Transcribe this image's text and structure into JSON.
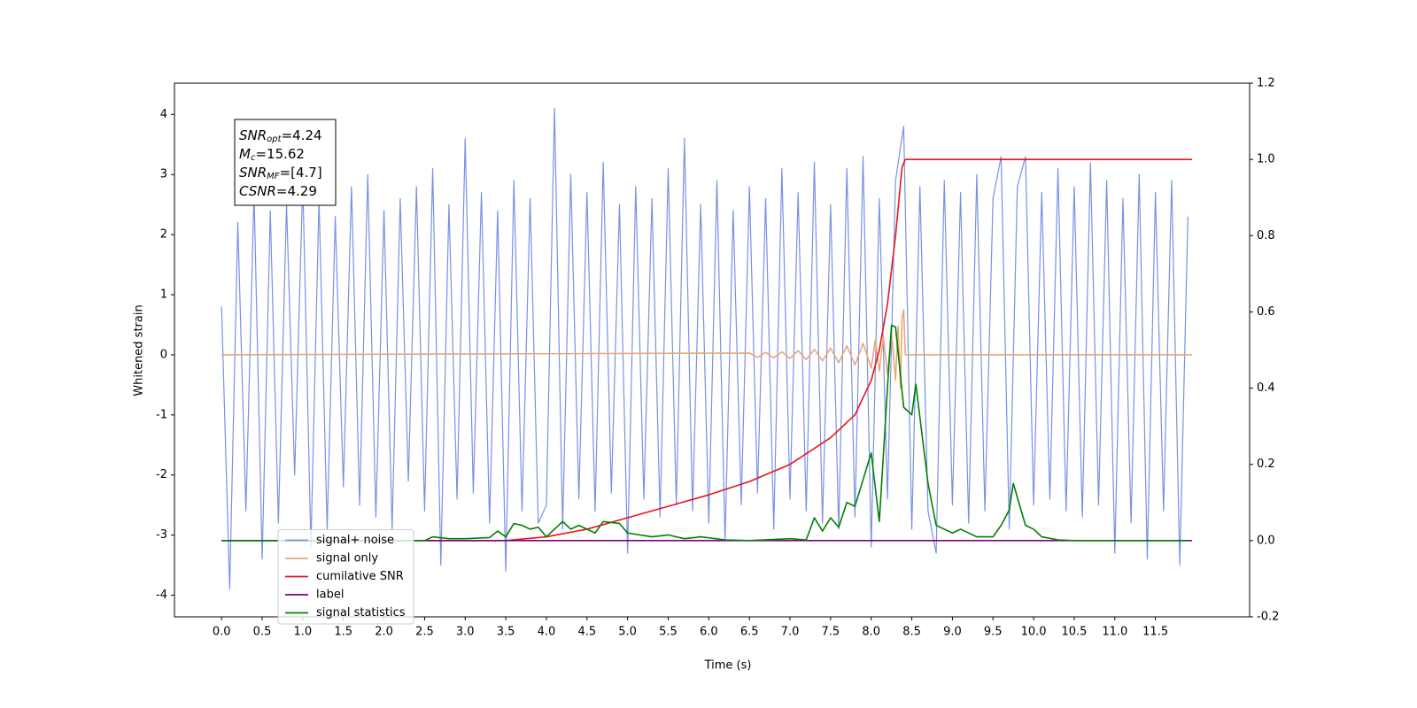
{
  "chart_data": {
    "type": "line",
    "xlabel": "Time (s)",
    "ylabel": "Whitened strain",
    "xlim": [
      -0.58,
      12.66
    ],
    "ylim": [
      -4.36,
      4.52
    ],
    "y2lim": [
      -0.2,
      1.2
    ],
    "xticks": [
      {
        "value": 0,
        "label": "0.0"
      },
      0.5,
      {
        "value": 1,
        "label": "1.0"
      },
      1.5,
      {
        "value": 2,
        "label": "2.0"
      },
      2.5,
      {
        "value": 3,
        "label": "3.0"
      },
      3.5,
      {
        "value": 4,
        "label": "4.0"
      },
      4.5,
      {
        "value": 5,
        "label": "5.0"
      },
      5.5,
      {
        "value": 6,
        "label": "6.0"
      },
      6.5,
      {
        "value": 7,
        "label": "7.0"
      },
      7.5,
      {
        "value": 8,
        "label": "8.0"
      },
      8.5,
      {
        "value": 9,
        "label": "9.0"
      },
      9.5,
      {
        "value": 10,
        "label": "10.0"
      },
      10.5,
      {
        "value": 11,
        "label": "11.0"
      },
      11.5
    ],
    "yticks": [
      -4,
      -3,
      -2,
      -1,
      0,
      1,
      2,
      3,
      4
    ],
    "y2ticks": [
      -0.2,
      {
        "value": 0,
        "label": "0.0"
      },
      0.2,
      0.4,
      0.6,
      0.8,
      {
        "value": 1,
        "label": "1.0"
      },
      1.2
    ],
    "legend": "lower left",
    "annotation": [
      {
        "base": "SNR",
        "sub": "opt",
        "text": "=4.24"
      },
      {
        "base": "M",
        "sub": "c",
        "text": "=15.62"
      },
      {
        "base": "SNR",
        "sub": "MF",
        "text": "=[4.7]"
      },
      {
        "base": "CSNR",
        "text": "=4.29"
      }
    ],
    "series": [
      {
        "name": "signal+ noise",
        "color": "#7891e6",
        "x": [
          0.0,
          0.1,
          0.2,
          0.3,
          0.4,
          0.5,
          0.6,
          0.7,
          0.8,
          0.9,
          1.0,
          1.1,
          1.2,
          1.3,
          1.4,
          1.5,
          1.6,
          1.7,
          1.8,
          1.9,
          2.0,
          2.1,
          2.2,
          2.3,
          2.4,
          2.5,
          2.6,
          2.7,
          2.8,
          2.9,
          3.0,
          3.1,
          3.2,
          3.3,
          3.4,
          3.5,
          3.6,
          3.7,
          3.8,
          3.9,
          4.0,
          4.1,
          4.2,
          4.3,
          4.4,
          4.5,
          4.6,
          4.7,
          4.8,
          4.9,
          5.0,
          5.1,
          5.2,
          5.3,
          5.4,
          5.5,
          5.6,
          5.7,
          5.8,
          5.9,
          6.0,
          6.1,
          6.2,
          6.3,
          6.4,
          6.5,
          6.6,
          6.7,
          6.8,
          6.9,
          7.0,
          7.1,
          7.2,
          7.3,
          7.4,
          7.5,
          7.6,
          7.7,
          7.8,
          7.9,
          8.0,
          8.1,
          8.2,
          8.3,
          8.4,
          8.5,
          8.6,
          8.7,
          8.8,
          8.9,
          9.0,
          9.1,
          9.2,
          9.3,
          9.4,
          9.5,
          9.6,
          9.7,
          9.8,
          9.9,
          10.0,
          10.1,
          10.2,
          10.3,
          10.4,
          10.5,
          10.6,
          10.7,
          10.8,
          10.9,
          11.0,
          11.1,
          11.2,
          11.3,
          11.4,
          11.5,
          11.6,
          11.7,
          11.8,
          11.9
        ],
        "values": [
          0.8,
          -3.9,
          2.2,
          -2.6,
          2.7,
          -3.4,
          2.4,
          -2.8,
          2.5,
          -2.0,
          2.9,
          -3.2,
          2.6,
          -2.9,
          2.3,
          -2.2,
          2.8,
          -2.5,
          3.0,
          -2.7,
          2.4,
          -2.9,
          2.6,
          -2.1,
          2.8,
          -2.6,
          3.1,
          -3.5,
          2.5,
          -2.4,
          3.6,
          -2.3,
          2.7,
          -2.8,
          2.4,
          -3.6,
          2.9,
          -2.6,
          2.6,
          -2.8,
          -2.5,
          4.1,
          -2.9,
          3.0,
          -2.4,
          2.7,
          -2.6,
          3.2,
          -2.3,
          2.5,
          -3.3,
          2.8,
          -2.4,
          2.6,
          -2.7,
          3.1,
          -2.5,
          3.6,
          -2.6,
          2.5,
          -2.8,
          2.9,
          -3.1,
          2.4,
          -2.5,
          2.8,
          -2.3,
          2.6,
          -2.9,
          3.1,
          -2.4,
          2.7,
          -2.6,
          3.2,
          -2.8,
          2.5,
          -2.9,
          3.1,
          -2.7,
          3.3,
          -3.2,
          2.6,
          -2.4,
          2.9,
          3.8,
          -2.9,
          2.8,
          -2.6,
          -3.3,
          2.9,
          -2.5,
          2.7,
          -2.8,
          3.0,
          -2.6,
          2.6,
          3.3,
          -2.9,
          2.8,
          3.3,
          -2.5,
          2.7,
          -2.4,
          3.1,
          -2.6,
          2.8,
          -2.7,
          3.2,
          -2.5,
          2.9,
          -3.3,
          2.6,
          -2.8,
          3.0,
          -3.4,
          2.7,
          -2.6,
          2.9,
          -3.5,
          2.3
        ]
      },
      {
        "name": "signal only",
        "color": "#e8a878",
        "x": [
          0.0,
          6.5,
          6.6,
          6.7,
          6.8,
          6.9,
          7.0,
          7.1,
          7.2,
          7.3,
          7.4,
          7.5,
          7.6,
          7.7,
          7.8,
          7.9,
          8.0,
          8.05,
          8.1,
          8.15,
          8.2,
          8.25,
          8.3,
          8.33,
          8.36,
          8.38,
          8.4,
          8.42,
          11.95
        ],
        "values": [
          0,
          0.03,
          -0.04,
          0.04,
          -0.05,
          0.05,
          -0.06,
          0.07,
          -0.08,
          0.09,
          -0.1,
          0.11,
          -0.13,
          0.15,
          -0.17,
          0.19,
          -0.22,
          0.24,
          -0.27,
          0.3,
          -0.33,
          0.37,
          -0.42,
          0.48,
          -0.55,
          0.62,
          0.75,
          0,
          0
        ]
      },
      {
        "name": "cumilative SNR",
        "color": "#e8141c",
        "axis": "y2",
        "x": [
          0,
          3.5,
          4,
          4.5,
          5,
          5.5,
          6,
          6.5,
          7,
          7.5,
          7.8,
          8.0,
          8.1,
          8.2,
          8.3,
          8.38,
          8.42,
          11.95
        ],
        "values": [
          0,
          0,
          0.01,
          0.03,
          0.06,
          0.09,
          0.12,
          0.155,
          0.2,
          0.27,
          0.33,
          0.42,
          0.5,
          0.62,
          0.8,
          0.98,
          1,
          1
        ]
      },
      {
        "name": "label",
        "color": "#800080",
        "axis": "y2",
        "x": [
          0,
          11.95
        ],
        "values": [
          0,
          0
        ]
      },
      {
        "name": "signal statistics",
        "color": "#008000",
        "axis": "y2",
        "x": [
          0,
          2.5,
          2.6,
          2.8,
          3.0,
          3.3,
          3.4,
          3.5,
          3.6,
          3.7,
          3.8,
          3.9,
          4.0,
          4.2,
          4.3,
          4.4,
          4.6,
          4.7,
          4.9,
          5.0,
          5.3,
          5.5,
          5.7,
          5.9,
          6.2,
          6.5,
          7.0,
          7.2,
          7.3,
          7.4,
          7.5,
          7.6,
          7.7,
          7.8,
          7.9,
          8.0,
          8.1,
          8.2,
          8.25,
          8.3,
          8.4,
          8.5,
          8.55,
          8.7,
          8.8,
          8.9,
          9.0,
          9.1,
          9.3,
          9.5,
          9.6,
          9.7,
          9.75,
          9.9,
          10.0,
          10.1,
          10.3,
          10.5,
          11.9
        ],
        "values": [
          0,
          0,
          0.01,
          0.005,
          0.005,
          0.008,
          0.025,
          0.01,
          0.045,
          0.04,
          0.03,
          0.035,
          0.01,
          0.05,
          0.03,
          0.04,
          0.02,
          0.05,
          0.045,
          0.02,
          0.01,
          0.015,
          0.005,
          0.01,
          0.002,
          0,
          0.005,
          0.002,
          0.06,
          0.025,
          0.06,
          0.035,
          0.1,
          0.09,
          0.16,
          0.23,
          0.05,
          0.4,
          0.565,
          0.56,
          0.35,
          0.33,
          0.41,
          0.15,
          0.04,
          0.03,
          0.02,
          0.03,
          0.01,
          0.01,
          0.04,
          0.08,
          0.15,
          0.04,
          0.03,
          0.01,
          0.002,
          0,
          0
        ]
      }
    ]
  }
}
